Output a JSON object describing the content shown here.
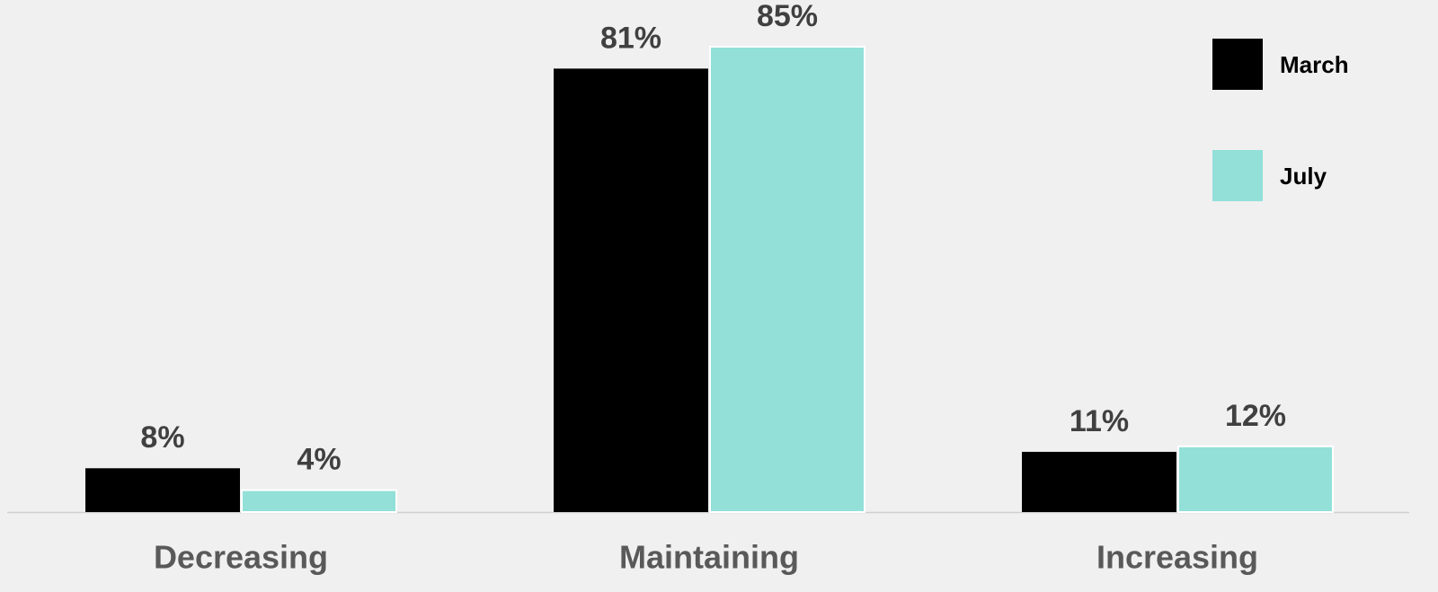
{
  "chart_data": {
    "type": "bar",
    "categories": [
      "Decreasing",
      "Maintaining",
      "Increasing"
    ],
    "series": [
      {
        "name": "March",
        "color": "#000000",
        "values": [
          8,
          81,
          11
        ],
        "value_labels": [
          "8%",
          "81%",
          "11%"
        ]
      },
      {
        "name": "July",
        "color": "#92e0d8",
        "values": [
          4,
          85,
          12
        ],
        "value_labels": [
          "4%",
          "85%",
          "12%"
        ]
      }
    ],
    "legend": "top-right"
  }
}
